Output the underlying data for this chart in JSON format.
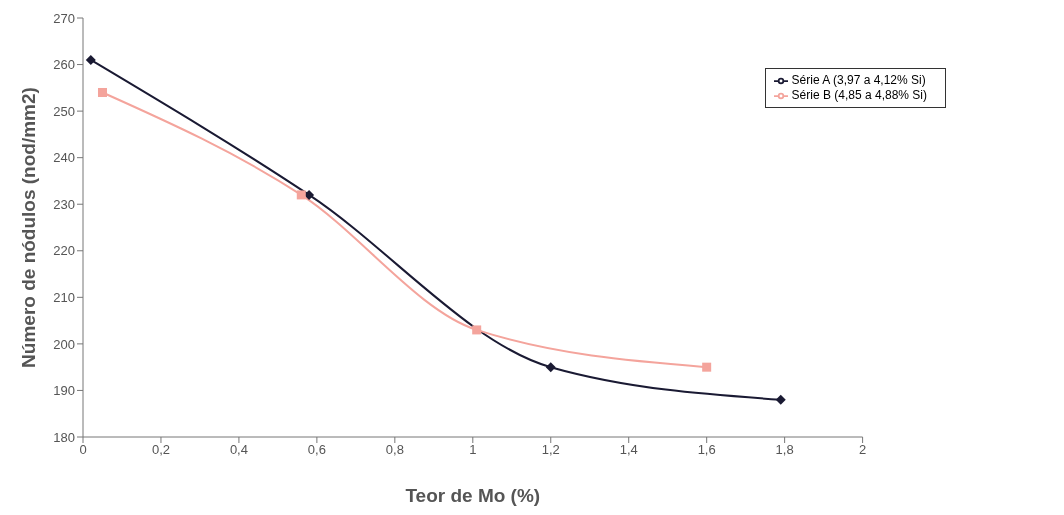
{
  "chart_data": {
    "type": "line",
    "xlabel": "Teor de Mo (%)",
    "ylabel": "Número de nódulos (nod/mm2)",
    "xlim": [
      0,
      2
    ],
    "xticks": [
      0,
      {
        "value": 0.2,
        "label": "0,2"
      },
      {
        "value": 0.4,
        "label": "0,4"
      },
      {
        "value": 0.6,
        "label": "0,6"
      },
      {
        "value": 0.8,
        "label": "0,8"
      },
      1,
      {
        "value": 1.2,
        "label": "1,2"
      },
      {
        "value": 1.4,
        "label": "1,4"
      },
      {
        "value": 1.6,
        "label": "1,6"
      },
      {
        "value": 1.8,
        "label": "1,8"
      },
      2
    ],
    "ylim": [
      180,
      270
    ],
    "yticks": [
      180,
      190,
      200,
      210,
      220,
      230,
      240,
      250,
      260,
      270
    ],
    "grid": false,
    "legend": "top right",
    "line_style": "solid",
    "series": [
      {
        "name": "Série A (3,97 a 4,12% Si)",
        "color": "#1a1a33",
        "marker": "diamond",
        "x": [
          0.02,
          0.58,
          1.2,
          1.79
        ],
        "values": [
          261,
          232,
          195,
          188
        ]
      },
      {
        "name": "Série B (4,85 a 4,88% Si)",
        "color": "#f4a49c",
        "marker": "square",
        "x": [
          0.05,
          0.56,
          1.01,
          1.6
        ],
        "values": [
          254,
          232,
          203,
          195
        ]
      }
    ]
  }
}
